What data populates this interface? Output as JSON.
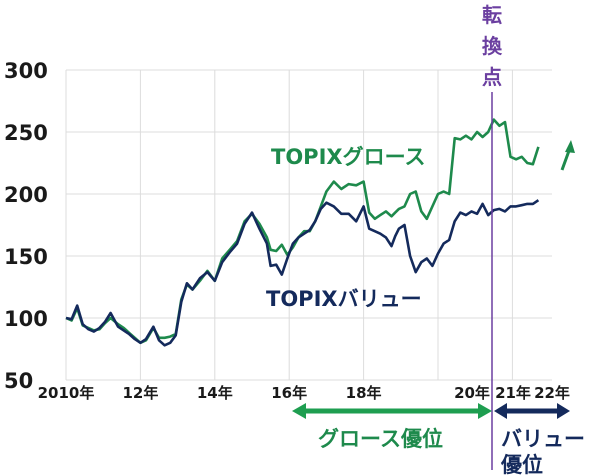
{
  "chart_data": {
    "type": "line",
    "title": "",
    "xlabel": "",
    "ylabel": "",
    "ylim": [
      50,
      300
    ],
    "xlim": [
      2010,
      2022.9
    ],
    "grid": true,
    "y_ticks": [
      "300",
      "250",
      "200",
      "150",
      "100",
      "50"
    ],
    "y_tick_values": [
      300,
      250,
      200,
      150,
      100,
      50
    ],
    "x_ticks": [
      {
        "label": "2010年",
        "x": 2010
      },
      {
        "label": "12年",
        "x": 2012
      },
      {
        "label": "14年",
        "x": 2014
      },
      {
        "label": "16年",
        "x": 2016
      },
      {
        "label": "18年",
        "x": 2018
      },
      {
        "label": "20年",
        "x": 2020
      },
      {
        "label": "21年",
        "x": 2021
      },
      {
        "label": "22年",
        "x": 2022
      }
    ],
    "vertical_gridlines": [
      2010,
      2012,
      2014,
      2016,
      2018,
      2020,
      2022
    ],
    "series": [
      {
        "name": "TOPIXグロース",
        "color": "#1e8a4c",
        "x": [
          2010.0,
          2010.15,
          2010.3,
          2010.45,
          2010.6,
          2010.75,
          2010.9,
          2011.05,
          2011.2,
          2011.4,
          2011.55,
          2011.7,
          2011.85,
          2012.0,
          2012.15,
          2012.35,
          2012.5,
          2012.65,
          2012.8,
          2012.95,
          2013.1,
          2013.25,
          2013.4,
          2013.6,
          2013.8,
          2014.0,
          2014.2,
          2014.4,
          2014.6,
          2014.8,
          2015.0,
          2015.2,
          2015.4,
          2015.5,
          2015.65,
          2015.8,
          2015.95,
          2016.1,
          2016.25,
          2016.4,
          2016.55,
          2016.7,
          2016.85,
          2017.0,
          2017.2,
          2017.4,
          2017.6,
          2017.8,
          2018.0,
          2018.15,
          2018.3,
          2018.45,
          2018.6,
          2018.75,
          2018.85,
          2018.95,
          2019.1,
          2019.25,
          2019.4,
          2019.55,
          2019.7,
          2019.85,
          2020.0,
          2020.15,
          2020.3,
          2020.45,
          2020.6,
          2020.75,
          2020.9,
          2021.05,
          2021.2,
          2021.35,
          2021.5,
          2021.65,
          2021.8,
          2021.95,
          2022.1,
          2022.25,
          2022.4,
          2022.55,
          2022.7
        ],
        "values": [
          100,
          98,
          108,
          94,
          92,
          90,
          91,
          96,
          100,
          95,
          92,
          88,
          84,
          80,
          82,
          92,
          84,
          84,
          85,
          87,
          115,
          127,
          123,
          130,
          138,
          130,
          148,
          155,
          162,
          178,
          184,
          176,
          165,
          155,
          154,
          159,
          151,
          157,
          165,
          170,
          170,
          178,
          190,
          202,
          210,
          204,
          208,
          207,
          210,
          185,
          180,
          183,
          186,
          182,
          185,
          188,
          190,
          200,
          202,
          186,
          180,
          190,
          200,
          202,
          200,
          245,
          244,
          247,
          244,
          250,
          246,
          250,
          260,
          255,
          258,
          230,
          228,
          230,
          225,
          224,
          238
        ]
      },
      {
        "name": "TOPIXバリュー",
        "color": "#142a5c",
        "x": [
          2010.0,
          2010.15,
          2010.3,
          2010.45,
          2010.6,
          2010.75,
          2010.9,
          2011.05,
          2011.2,
          2011.4,
          2011.55,
          2011.7,
          2011.85,
          2012.0,
          2012.15,
          2012.35,
          2012.5,
          2012.65,
          2012.8,
          2012.95,
          2013.1,
          2013.25,
          2013.4,
          2013.6,
          2013.8,
          2014.0,
          2014.2,
          2014.4,
          2014.6,
          2014.8,
          2015.0,
          2015.2,
          2015.4,
          2015.5,
          2015.65,
          2015.8,
          2015.95,
          2016.1,
          2016.25,
          2016.4,
          2016.55,
          2016.7,
          2016.85,
          2017.0,
          2017.2,
          2017.4,
          2017.6,
          2017.8,
          2018.0,
          2018.15,
          2018.3,
          2018.45,
          2018.6,
          2018.75,
          2018.85,
          2018.95,
          2019.1,
          2019.25,
          2019.4,
          2019.55,
          2019.7,
          2019.85,
          2020.0,
          2020.15,
          2020.3,
          2020.45,
          2020.6,
          2020.75,
          2020.9,
          2021.05,
          2021.2,
          2021.35,
          2021.5,
          2021.65,
          2021.8,
          2021.95,
          2022.1,
          2022.25,
          2022.4,
          2022.55,
          2022.7
        ],
        "values": [
          100,
          99,
          110,
          95,
          91,
          89,
          92,
          97,
          104,
          93,
          90,
          87,
          83,
          80,
          83,
          93,
          82,
          78,
          80,
          86,
          113,
          128,
          123,
          132,
          137,
          130,
          145,
          153,
          160,
          176,
          185,
          172,
          160,
          142,
          143,
          135,
          148,
          160,
          165,
          168,
          171,
          178,
          188,
          193,
          190,
          184,
          184,
          178,
          190,
          172,
          170,
          168,
          165,
          158,
          166,
          172,
          175,
          150,
          137,
          145,
          148,
          142,
          152,
          160,
          163,
          178,
          185,
          183,
          186,
          184,
          192,
          183,
          187,
          188,
          186,
          190,
          190,
          191,
          192,
          192,
          195
        ]
      }
    ],
    "annotations": [
      {
        "text": "TOPIXグロース",
        "color": "#1e8a4c"
      },
      {
        "text": "TOPIXバリュー",
        "color": "#142a5c"
      },
      {
        "text": "転換点",
        "color": "#6b3fa0",
        "x": 2020.8
      },
      {
        "text": "グロース優位",
        "color": "#1e8a4c",
        "from": 2016,
        "to": 2020.8
      },
      {
        "text": "バリュー優位",
        "color": "#142a5c",
        "from": 2020.8,
        "to": 2022.5
      },
      {
        "text": "up-arrow",
        "color": "#1e8a4c"
      }
    ]
  },
  "labels": {
    "growth_series": "TOPIXグロース",
    "value_series": "TOPIXバリュー",
    "pivot": [
      "転",
      "換",
      "点"
    ],
    "growth_phase": "グロース優位",
    "value_phase_line1": "バリュー",
    "value_phase_line2": "優位"
  },
  "colors": {
    "growth": "#1e8a4c",
    "value": "#142a5c",
    "pivot": "#6b3fa0",
    "grid": "#dcdcdc",
    "axis_text": "#1a1a1a"
  }
}
